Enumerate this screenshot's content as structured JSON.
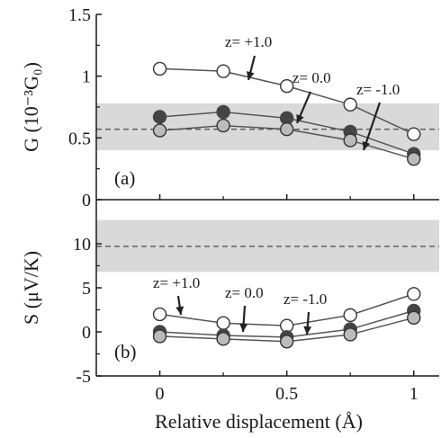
{
  "chart_data": [
    {
      "type": "line",
      "panel_label": "(a)",
      "ylabel": "G (10⁻³G₀)",
      "ylim": [
        0,
        1.5
      ],
      "yticks": [
        0,
        0.5,
        1,
        1.5
      ],
      "ytick_labels": [
        "0",
        "0.5",
        "1",
        "1.5"
      ],
      "xlim": [
        -0.25,
        1.1
      ],
      "x": [
        0,
        0.25,
        0.5,
        0.75,
        1
      ],
      "band": [
        0.4,
        0.78
      ],
      "reference_line": 0.57,
      "series": [
        {
          "name": "z= +1.0",
          "marker": "open",
          "values": [
            1.06,
            1.04,
            0.92,
            0.77,
            0.53
          ]
        },
        {
          "name": "z= 0.0",
          "marker": "filled",
          "values": [
            0.67,
            0.71,
            0.66,
            0.55,
            0.37
          ]
        },
        {
          "name": "z= -1.0",
          "marker": "grey",
          "values": [
            0.56,
            0.6,
            0.57,
            0.48,
            0.33
          ]
        }
      ],
      "annotations": [
        {
          "text": "z= +1.0",
          "series": 0
        },
        {
          "text": "z= 0.0",
          "series": 1
        },
        {
          "text": "z= -1.0",
          "series": 2
        }
      ]
    },
    {
      "type": "line",
      "panel_label": "(b)",
      "ylabel": "S (μV/K)",
      "ylim": [
        -5,
        15
      ],
      "yticks": [
        -5,
        0,
        5,
        10
      ],
      "ytick_labels": [
        "-5",
        "0",
        "5",
        "10"
      ],
      "xlim": [
        -0.25,
        1.1
      ],
      "x": [
        0,
        0.25,
        0.5,
        0.75,
        1
      ],
      "band": [
        6.8,
        12.7
      ],
      "reference_line": 9.7,
      "series": [
        {
          "name": "z= +1.0",
          "marker": "open",
          "values": [
            2.0,
            1.0,
            0.7,
            1.9,
            4.3
          ]
        },
        {
          "name": "z= 0.0",
          "marker": "filled",
          "values": [
            0.0,
            -0.4,
            -0.6,
            0.3,
            2.4
          ]
        },
        {
          "name": "z= -1.0",
          "marker": "grey",
          "values": [
            -0.5,
            -0.8,
            -1.1,
            -0.3,
            1.6
          ]
        }
      ],
      "annotations": [
        {
          "text": "z= +1.0",
          "series": 0
        },
        {
          "text": "z= 0.0",
          "series": 1
        },
        {
          "text": "z= -1.0",
          "series": 2
        }
      ]
    }
  ],
  "xaxis": {
    "label": "Relative displacement (Å)",
    "ticks": [
      0,
      0.5,
      1
    ],
    "tick_labels": [
      "0",
      "0.5",
      "1"
    ]
  },
  "colors": {
    "band": "#d9d9d9",
    "line": "#555555",
    "axis": "#1a1a1a",
    "filled_marker": "#444444",
    "grey_marker": "#bbbbbb",
    "open_marker": "#ffffff"
  }
}
